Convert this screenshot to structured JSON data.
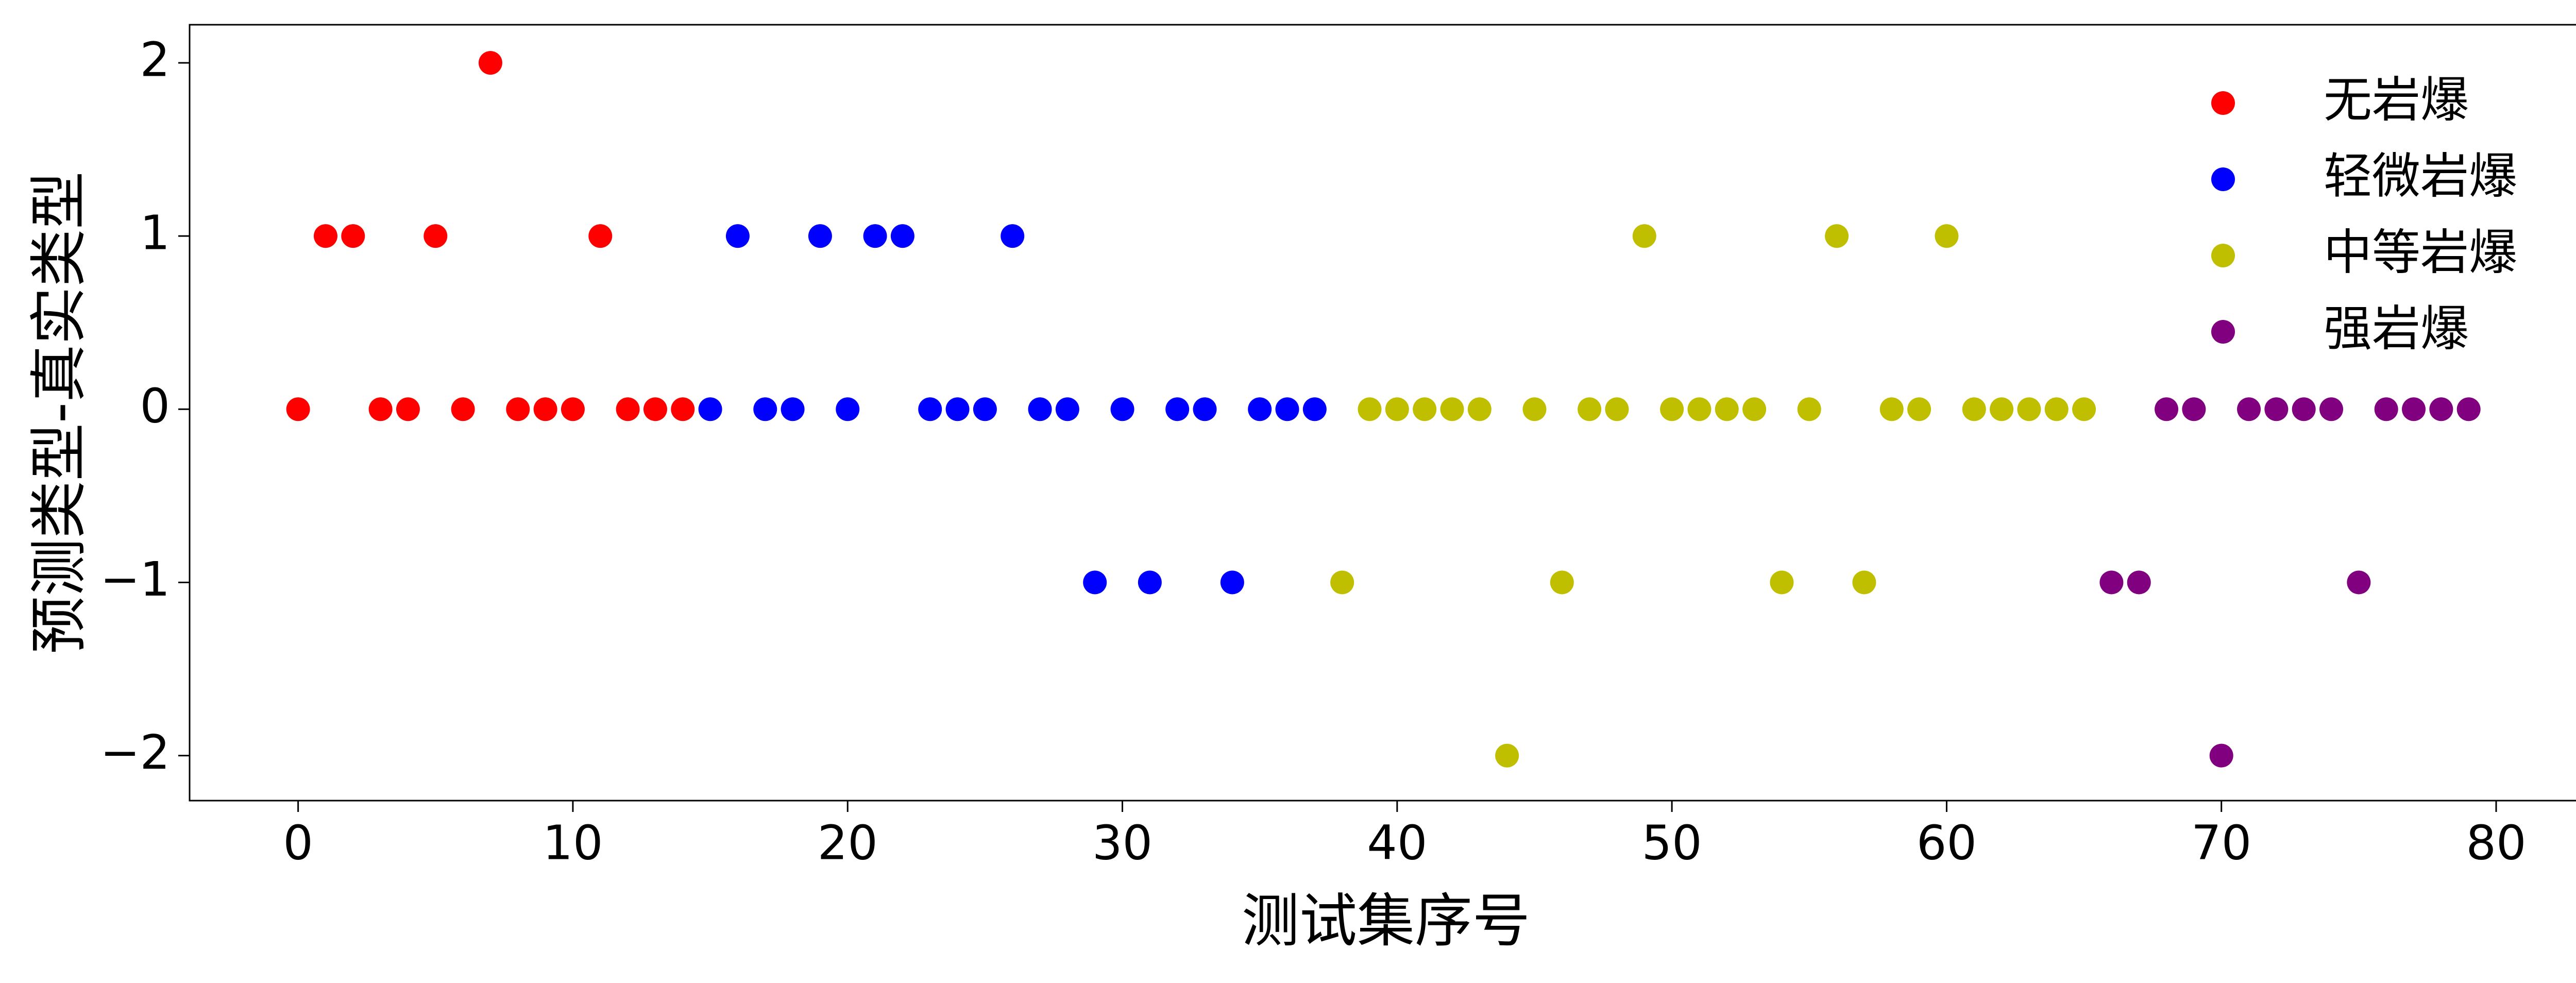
{
  "chart_data": {
    "type": "scatter",
    "x_label": "测试集序号",
    "y_label": "预测类型-真实类型",
    "xlim": [
      -3.95,
      83.15
    ],
    "ylim": [
      -2.26,
      2.22
    ],
    "xticks": [
      0,
      10,
      20,
      30,
      40,
      50,
      60,
      70,
      80
    ],
    "yticks": [
      {
        "value": -2,
        "label": "−2"
      },
      {
        "value": -1,
        "label": "−1"
      },
      0,
      1,
      2
    ],
    "legend": "upper right",
    "series": [
      {
        "name": "无岩爆",
        "color": "#ff0000",
        "x": [
          0,
          1,
          2,
          3,
          4,
          5,
          6,
          7,
          8,
          9,
          10,
          11,
          12,
          13,
          14
        ],
        "values": [
          0,
          1,
          1,
          0,
          0,
          1,
          0,
          2,
          0,
          0,
          0,
          1,
          0,
          0,
          0
        ]
      },
      {
        "name": "轻微岩爆",
        "color": "#0000ff",
        "x": [
          15,
          16,
          17,
          18,
          19,
          20,
          21,
          22,
          23,
          24,
          25,
          26,
          27,
          28,
          29,
          30,
          31,
          32,
          33,
          34,
          35,
          36,
          37
        ],
        "values": [
          0,
          1,
          0,
          0,
          1,
          0,
          1,
          1,
          0,
          0,
          0,
          1,
          0,
          0,
          -1,
          0,
          -1,
          0,
          0,
          -1,
          0,
          0,
          0
        ]
      },
      {
        "name": "中等岩爆",
        "color": "#bfbf00",
        "x": [
          38,
          39,
          40,
          41,
          42,
          43,
          44,
          45,
          46,
          47,
          48,
          49,
          50,
          51,
          52,
          53,
          54,
          55,
          56,
          57,
          58,
          59,
          60,
          61,
          62,
          63,
          64,
          65
        ],
        "values": [
          -1,
          0,
          0,
          0,
          0,
          0,
          -2,
          0,
          -1,
          0,
          0,
          1,
          0,
          0,
          0,
          0,
          -1,
          0,
          1,
          -1,
          0,
          0,
          1,
          0,
          0,
          0,
          0,
          0
        ]
      },
      {
        "name": "强岩爆",
        "color": "#800080",
        "x": [
          66,
          67,
          68,
          69,
          70,
          71,
          72,
          73,
          74,
          75,
          76,
          77,
          78,
          79
        ],
        "values": [
          -1,
          -1,
          0,
          0,
          -2,
          0,
          0,
          0,
          0,
          -1,
          0,
          0,
          0,
          0
        ]
      }
    ]
  }
}
